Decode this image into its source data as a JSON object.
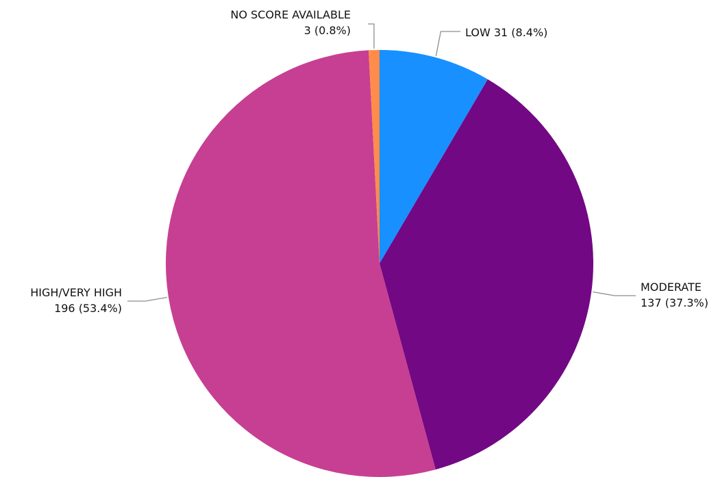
{
  "chart_data": {
    "type": "pie",
    "title": "",
    "start_angle_deg": 0,
    "direction": "clockwise",
    "slices": [
      {
        "label": "LOW",
        "value": 31,
        "percent": 8.4,
        "value_text": "31 (8.4%)",
        "label_text": "LOW 31 (8.4%)",
        "color": "#1890ff"
      },
      {
        "label": "MODERATE",
        "value": 137,
        "percent": 37.3,
        "value_text": "137 (37.3%)",
        "label_text": "MODERATE",
        "color": "#720883"
      },
      {
        "label": "HIGH/VERY HIGH",
        "value": 196,
        "percent": 53.4,
        "value_text": "196 (53.4%)",
        "label_text": "HIGH/VERY HIGH",
        "color": "#c63f92"
      },
      {
        "label": "NO SCORE AVAILABLE",
        "value": 3,
        "percent": 0.8,
        "value_text": "3 (0.8%)",
        "label_text": "NO SCORE AVAILABLE",
        "color": "#ff8c4a"
      }
    ]
  }
}
